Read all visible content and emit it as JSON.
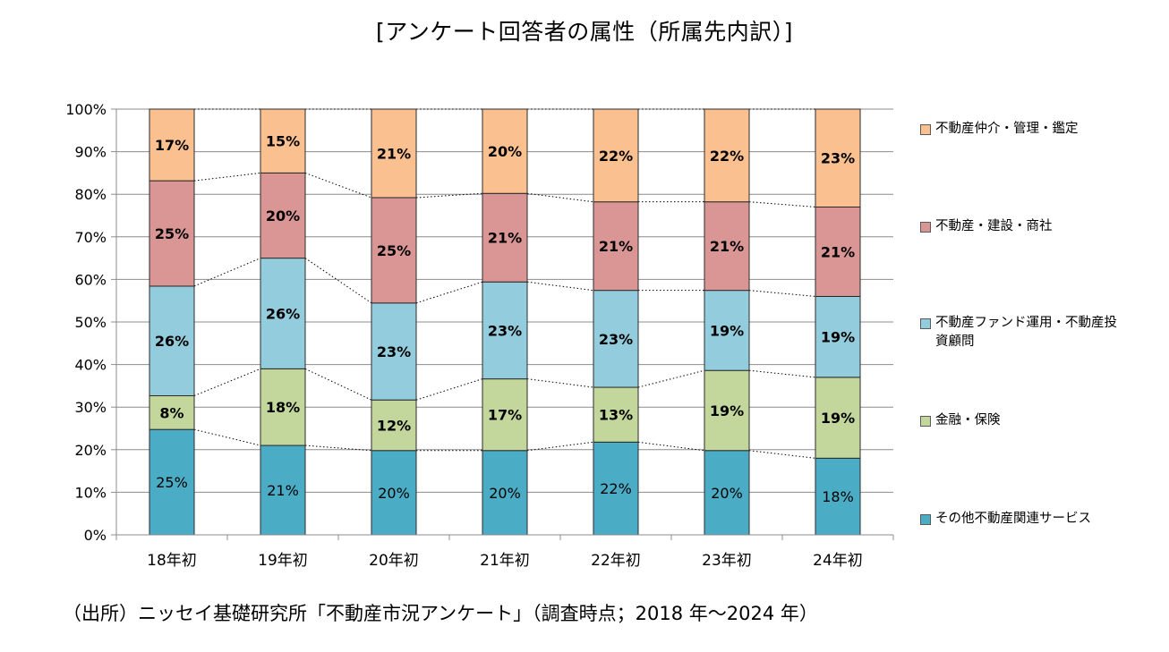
{
  "title": "[アンケート回答者の属性（所属先内訳）]",
  "source": "（出所）ニッセイ基礎研究所「不動産市況アンケート」（調査時点；2018 年～2024 年）",
  "chart_data": {
    "type": "bar",
    "stacked": true,
    "categories": [
      "18年初",
      "19年初",
      "20年初",
      "21年初",
      "22年初",
      "23年初",
      "24年初"
    ],
    "ylim": [
      0,
      100
    ],
    "yticks": [
      "0%",
      "10%",
      "20%",
      "30%",
      "40%",
      "50%",
      "60%",
      "70%",
      "80%",
      "90%",
      "100%"
    ],
    "grid": true,
    "legend_position": "right",
    "series_connector_lines": "dotted",
    "series": [
      {
        "name": "その他不動産関連サービス",
        "color": "#4bacc6",
        "values": [
          25,
          21,
          20,
          20,
          22,
          20,
          18
        ],
        "labels": [
          "25%",
          "21%",
          "20%",
          "20%",
          "22%",
          "20%",
          "18%"
        ],
        "label_bold": false
      },
      {
        "name": "金融・保険",
        "color": "#c3d69b",
        "values": [
          8,
          18,
          12,
          17,
          13,
          19,
          19
        ],
        "labels": [
          "8%",
          "18%",
          "12%",
          "17%",
          "13%",
          "19%",
          "19%"
        ],
        "label_bold": true
      },
      {
        "name": "不動産ファンド運用・不動産投資顧問",
        "color": "#93cddd",
        "values": [
          26,
          26,
          23,
          23,
          23,
          19,
          19
        ],
        "labels": [
          "26%",
          "26%",
          "23%",
          "23%",
          "23%",
          "19%",
          "19%"
        ],
        "label_bold": true
      },
      {
        "name": "不動産・建設・商社",
        "color": "#d99694",
        "values": [
          25,
          20,
          25,
          21,
          21,
          21,
          21
        ],
        "labels": [
          "25%",
          "20%",
          "25%",
          "21%",
          "21%",
          "21%",
          "21%"
        ],
        "label_bold": true
      },
      {
        "name": "不動産仲介・管理・鑑定",
        "color": "#fac090",
        "values": [
          17,
          15,
          21,
          20,
          22,
          22,
          23
        ],
        "labels": [
          "17%",
          "15%",
          "21%",
          "20%",
          "22%",
          "22%",
          "23%"
        ],
        "label_bold": true
      }
    ]
  }
}
